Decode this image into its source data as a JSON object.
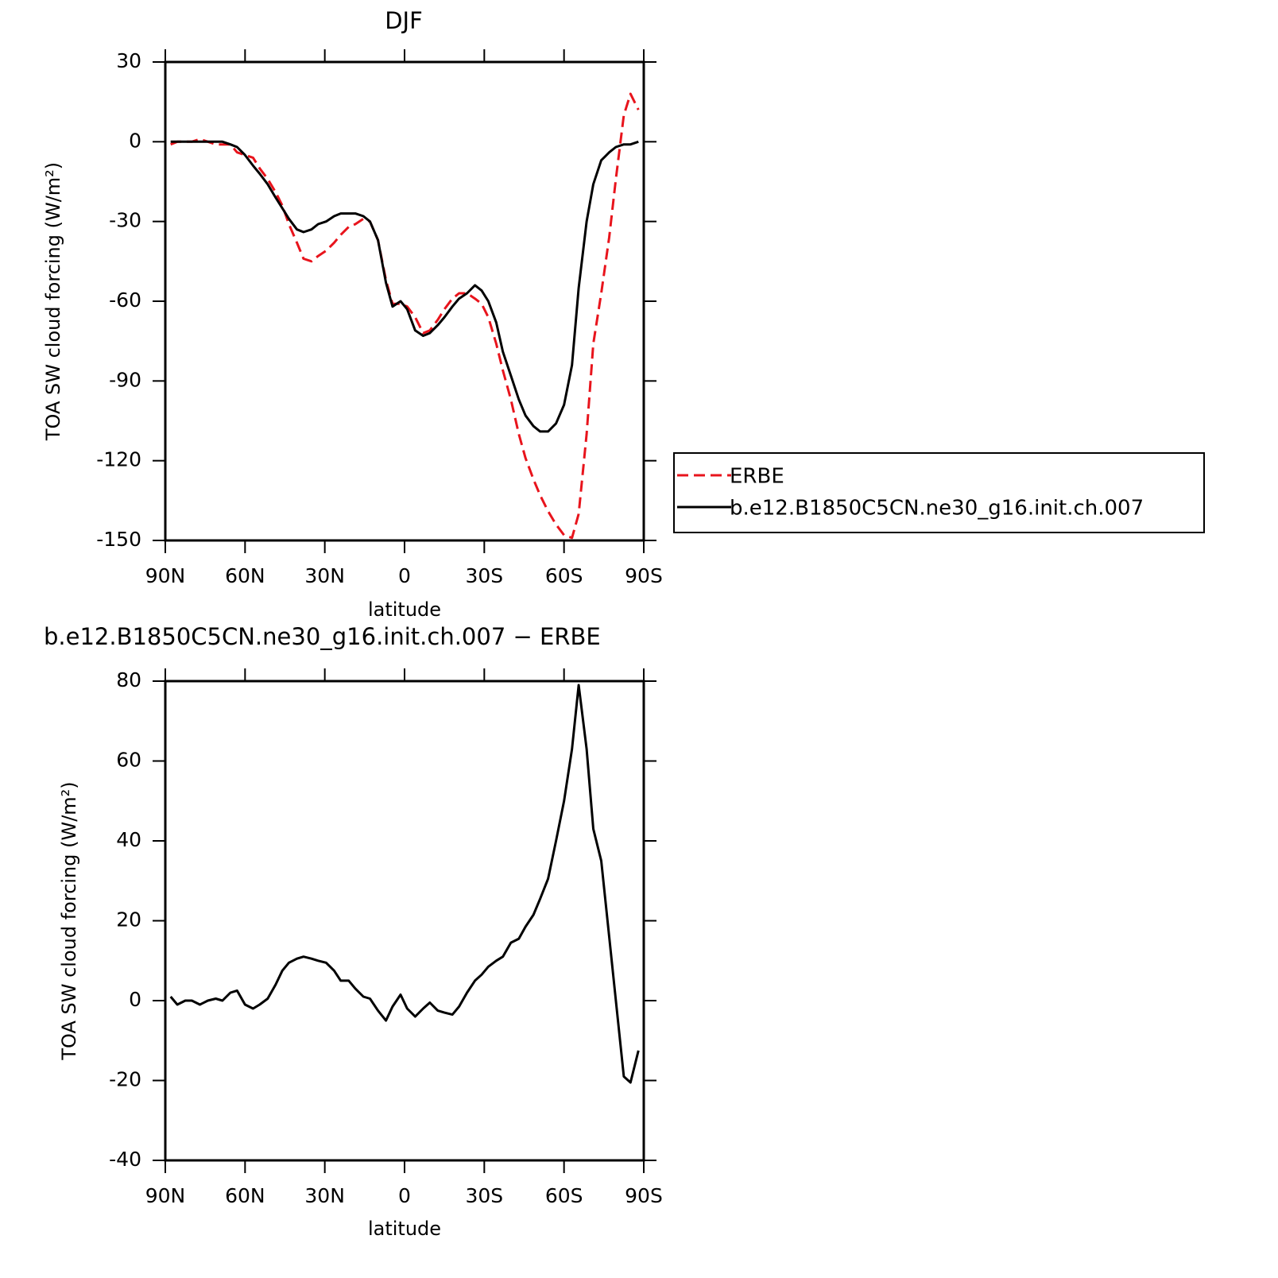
{
  "chart_data": [
    {
      "type": "line",
      "title": "DJF",
      "xlabel": "latitude",
      "ylabel": "TOA SW cloud forcing (W/m²)",
      "x": [
        88,
        85.5,
        82.5,
        80,
        77,
        74,
        71,
        68.5,
        65.5,
        63,
        60,
        57,
        54.5,
        51.5,
        48.5,
        46,
        43.5,
        40.5,
        38,
        35,
        32.5,
        29.5,
        26.5,
        24,
        21,
        18.5,
        15.5,
        13,
        10,
        7,
        4.5,
        1.5,
        -1,
        -4,
        -7,
        -9.5,
        -12.5,
        -15,
        -18,
        -20.5,
        -23.5,
        -26.5,
        -29,
        -31.5,
        -34.5,
        -37,
        -40,
        -43,
        -45.5,
        -48.5,
        -51,
        -54,
        -57,
        -60,
        -63,
        -65.5,
        -68.5,
        -71,
        -74,
        -77,
        -79.5,
        -82.5,
        -85,
        -88
      ],
      "series": [
        {
          "name": "ERBE",
          "color": "#e8141c",
          "style": "dashed",
          "values": [
            -1,
            0,
            0,
            0,
            1,
            0,
            -1,
            -1,
            -1,
            -4,
            -5,
            -6,
            -10,
            -14,
            -19,
            -24,
            -31,
            -38,
            -44,
            -45,
            -43,
            -41,
            -38,
            -35,
            -32,
            -31,
            -29,
            -30,
            -37,
            -52,
            -61,
            -61,
            -62,
            -66,
            -72,
            -71,
            -67,
            -63,
            -59,
            -57,
            -57,
            -59,
            -61,
            -66,
            -76,
            -86,
            -97,
            -110,
            -119,
            -127,
            -133,
            -139,
            -144,
            -148,
            -149,
            -140,
            -110,
            -76,
            -57,
            -36,
            -14,
            10,
            18,
            12
          ]
        },
        {
          "name": "b.e12.B1850C5CN.ne30_g16.init.ch.007",
          "color": "#000000",
          "style": "solid",
          "values": [
            0,
            0,
            0,
            0,
            0,
            0,
            0,
            0,
            -1,
            -2,
            -5,
            -9,
            -12,
            -16,
            -21,
            -25,
            -29,
            -33,
            -34,
            -33,
            -31,
            -30,
            -28,
            -27,
            -27,
            -27,
            -28,
            -30,
            -37,
            -53,
            -62,
            -60,
            -63,
            -71,
            -73,
            -72,
            -69,
            -66,
            -62,
            -59,
            -57,
            -54,
            -56,
            -60,
            -68,
            -79,
            -88,
            -97,
            -103,
            -107,
            -109,
            -109,
            -106,
            -99,
            -84,
            -55,
            -30,
            -16,
            -7,
            -4,
            -2,
            -1,
            -1,
            0
          ]
        }
      ],
      "xlim": [
        90,
        -90
      ],
      "xticks": [
        {
          "value": 90,
          "label": "90N"
        },
        {
          "value": 60,
          "label": "60N"
        },
        {
          "value": 30,
          "label": "30N"
        },
        0,
        {
          "value": -30,
          "label": "30S"
        },
        {
          "value": -60,
          "label": "60S"
        },
        {
          "value": -90,
          "label": "90S"
        }
      ],
      "ylim": [
        -150,
        30
      ],
      "yticks": [
        -150,
        -120,
        -90,
        -60,
        -30,
        0,
        30
      ],
      "legend": "right"
    },
    {
      "type": "line",
      "title": "b.e12.B1850C5CN.ne30_g16.init.ch.007 − ERBE",
      "xlabel": "latitude",
      "ylabel": "TOA SW cloud forcing (W/m²)",
      "x": [
        88,
        85.5,
        82.5,
        80,
        77,
        74,
        71,
        68.5,
        65.5,
        63,
        60,
        57,
        54.5,
        51.5,
        48.5,
        46,
        43.5,
        40.5,
        38,
        35,
        32.5,
        29.5,
        26.5,
        24,
        21,
        18.5,
        15.5,
        13,
        10,
        7,
        4.5,
        1.5,
        -1,
        -4,
        -7,
        -9.5,
        -12.5,
        -15,
        -18,
        -20.5,
        -23.5,
        -26.5,
        -29,
        -31.5,
        -34.5,
        -37,
        -40,
        -43,
        -45.5,
        -48.5,
        -51,
        -54,
        -57,
        -60,
        -63,
        -65.5,
        -68.5,
        -71,
        -74,
        -77,
        -79.5,
        -82.5,
        -85,
        -88
      ],
      "color": "#000000",
      "values": [
        1,
        -1,
        0,
        0,
        -1,
        0,
        0.5,
        0,
        2,
        2.5,
        -1,
        -2,
        -1,
        0.5,
        4,
        7.5,
        9.5,
        10.5,
        11,
        10.5,
        10,
        9.5,
        7.5,
        5,
        5,
        3,
        1,
        0.5,
        -2.5,
        -5,
        -1.5,
        1.5,
        -2,
        -4,
        -2,
        -0.5,
        -2.5,
        -3,
        -3.5,
        -1.5,
        2,
        5,
        6.5,
        8.5,
        10,
        11,
        14.5,
        15.5,
        18.5,
        21.5,
        25.5,
        30.5,
        40,
        50,
        63,
        79,
        63,
        43,
        35,
        16,
        0,
        -19,
        -20.5,
        -12.5
      ],
      "xlim": [
        90,
        -90
      ],
      "xticks": [
        {
          "value": 90,
          "label": "90N"
        },
        {
          "value": 60,
          "label": "60N"
        },
        {
          "value": 30,
          "label": "30N"
        },
        0,
        {
          "value": -30,
          "label": "30S"
        },
        {
          "value": -60,
          "label": "60S"
        },
        {
          "value": -90,
          "label": "90S"
        }
      ],
      "ylim": [
        -40,
        80
      ],
      "yticks": [
        -40,
        -20,
        0,
        20,
        40,
        60,
        80
      ]
    }
  ]
}
